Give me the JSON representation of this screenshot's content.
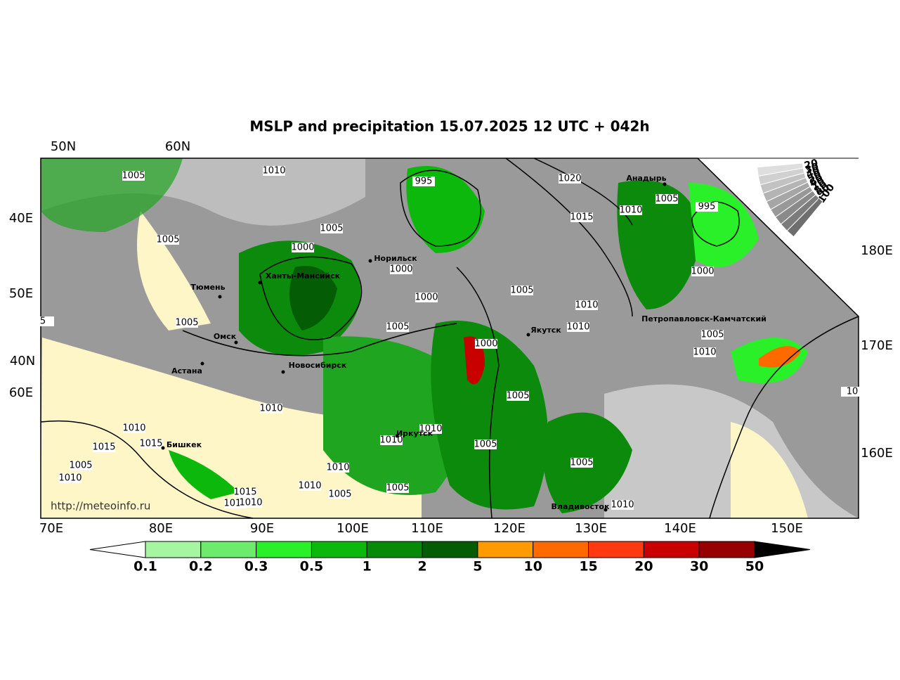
{
  "title": "MSLP and precipitation 15.07.2025 12 UTC + 042h",
  "lat_lon_labels": {
    "top": [
      "50N",
      "60N"
    ],
    "left": [
      "40E",
      "50E",
      "40N",
      "60E"
    ],
    "right": [
      "180E",
      "170E",
      "160E"
    ],
    "bottom": [
      "70E",
      "80E",
      "90E",
      "100E",
      "110E",
      "120E",
      "130E",
      "140E",
      "150E"
    ]
  },
  "isobar_labels": [
    1005,
    1010,
    995,
    1020,
    1005,
    995,
    1010,
    1015,
    1005,
    1005,
    1000,
    1000,
    1000,
    1000,
    1005,
    1010,
    1005,
    1010,
    1005,
    1005,
    1000,
    1010,
    1005,
    1010,
    1010,
    1010,
    1010,
    1015,
    1015,
    1005,
    1005,
    1010,
    1005,
    1010,
    1010,
    1005,
    1015,
    1005,
    1010,
    1010,
    1010,
    10,
    5
  ],
  "cities": [
    "Анадырь",
    "Норильск",
    "Ханты-Мансийск",
    "Тюмень",
    "Якутск",
    "Петропавловск-Камчатский",
    "Омск",
    "Астана",
    "Новосибирск",
    "Иркутск",
    "Бишкек",
    "Владивосток"
  ],
  "watermark": "http://meteoinfo.ru",
  "cloud_scale": [
    100,
    90,
    80,
    70,
    60,
    50,
    40,
    30,
    20
  ],
  "colorbar": {
    "levels": [
      0.1,
      0.2,
      0.3,
      0.5,
      1,
      2,
      5,
      10,
      15,
      20,
      30,
      50
    ],
    "colors": [
      "#a6f5a0",
      "#6ceb6c",
      "#2af02a",
      "#0cb80c",
      "#078a07",
      "#045c04",
      "#ff9a00",
      "#ff6a00",
      "#ff3a10",
      "#c80000",
      "#960000"
    ]
  }
}
